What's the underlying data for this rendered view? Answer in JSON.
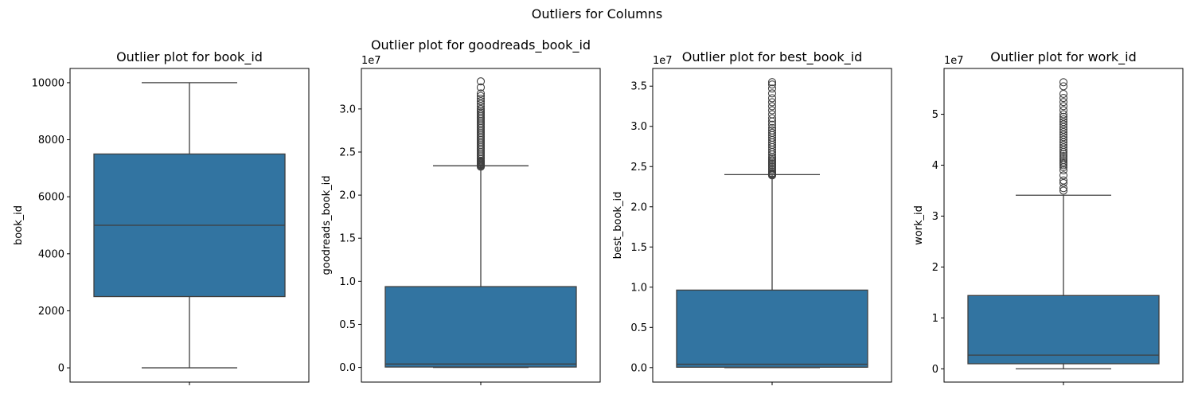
{
  "figure": {
    "suptitle": "Outliers for Columns"
  },
  "chart_data": [
    {
      "type": "box",
      "title": "Outlier plot for book_id",
      "ylabel": "book_id",
      "offset_label": "",
      "ylim": [
        -500,
        10500
      ],
      "yticks": [
        0,
        2000,
        4000,
        6000,
        8000,
        10000
      ],
      "ytick_labels": [
        "0",
        "2000",
        "4000",
        "6000",
        "8000",
        "10000"
      ],
      "box": {
        "whisker_low": 1,
        "q1": 2500,
        "median": 5000,
        "q3": 7500,
        "whisker_high": 10000
      },
      "outliers": [],
      "color": "#3274a1"
    },
    {
      "type": "box",
      "title": "Outlier plot for goodreads_book_id",
      "ylabel": "goodreads_book_id",
      "offset_label": "1e7",
      "ylim": [
        -1700000,
        34700000
      ],
      "yticks": [
        0,
        5000000,
        10000000,
        15000000,
        20000000,
        25000000,
        30000000
      ],
      "ytick_labels": [
        "0.0",
        "0.5",
        "1.0",
        "1.5",
        "2.0",
        "2.5",
        "3.0"
      ],
      "box": {
        "whisker_low": 1,
        "q1": 46000,
        "median": 394000,
        "q3": 9380000,
        "whisker_high": 23400000
      },
      "outliers": [
        23300000,
        23400000,
        23500000,
        23600000,
        23700000,
        23800000,
        23900000,
        24000000,
        24200000,
        24400000,
        24600000,
        24800000,
        25000000,
        25200000,
        25400000,
        25600000,
        25800000,
        26000000,
        26200000,
        26400000,
        26600000,
        26800000,
        27000000,
        27200000,
        27400000,
        27600000,
        27800000,
        28000000,
        28200000,
        28400000,
        28600000,
        28800000,
        29000000,
        29200000,
        29400000,
        29600000,
        29800000,
        30000000,
        30300000,
        30600000,
        30900000,
        31200000,
        31500000,
        31800000,
        32500000,
        33200000
      ],
      "color": "#3274a1"
    },
    {
      "type": "box",
      "title": "Outlier plot for best_book_id",
      "ylabel": "best_book_id",
      "offset_label": "1e7",
      "ylim": [
        -1800000,
        37200000
      ],
      "yticks": [
        0,
        5000000,
        10000000,
        15000000,
        20000000,
        25000000,
        30000000,
        35000000
      ],
      "ytick_labels": [
        "0.0",
        "0.5",
        "1.0",
        "1.5",
        "2.0",
        "2.5",
        "3.0",
        "3.5"
      ],
      "box": {
        "whisker_low": 1,
        "q1": 47000,
        "median": 420000,
        "q3": 9640000,
        "whisker_high": 24000000
      },
      "outliers": [
        23900000,
        24000000,
        24100000,
        24200000,
        24400000,
        24600000,
        24800000,
        25000000,
        25200000,
        25400000,
        25600000,
        25800000,
        26000000,
        26200000,
        26500000,
        26800000,
        27100000,
        27400000,
        27700000,
        28000000,
        28300000,
        28600000,
        28900000,
        29200000,
        29500000,
        29800000,
        30200000,
        30600000,
        31000000,
        31500000,
        32000000,
        32500000,
        33000000,
        33500000,
        34100000,
        34700000,
        35200000,
        35500000
      ],
      "color": "#3274a1"
    },
    {
      "type": "box",
      "title": "Outlier plot for work_id",
      "ylabel": "work_id",
      "offset_label": "1e7",
      "ylim": [
        -2600000,
        59000000
      ],
      "yticks": [
        0,
        10000000,
        20000000,
        30000000,
        40000000,
        50000000
      ],
      "ytick_labels": [
        "0",
        "1",
        "2",
        "3",
        "4",
        "5"
      ],
      "box": {
        "whisker_low": 87,
        "q1": 1000000,
        "median": 2700000,
        "q3": 14400000,
        "whisker_high": 34100000
      },
      "outliers": [
        35000000,
        35500000,
        36500000,
        37000000,
        38000000,
        39000000,
        39600000,
        40000000,
        40300000,
        40600000,
        41000000,
        41400000,
        41800000,
        42200000,
        42600000,
        43000000,
        43500000,
        44000000,
        44500000,
        45000000,
        45500000,
        46000000,
        46500000,
        47000000,
        47500000,
        48000000,
        48500000,
        49000000,
        49500000,
        50000000,
        50800000,
        51600000,
        52400000,
        53200000,
        54000000,
        55500000,
        56300000
      ],
      "color": "#3274a1"
    }
  ]
}
